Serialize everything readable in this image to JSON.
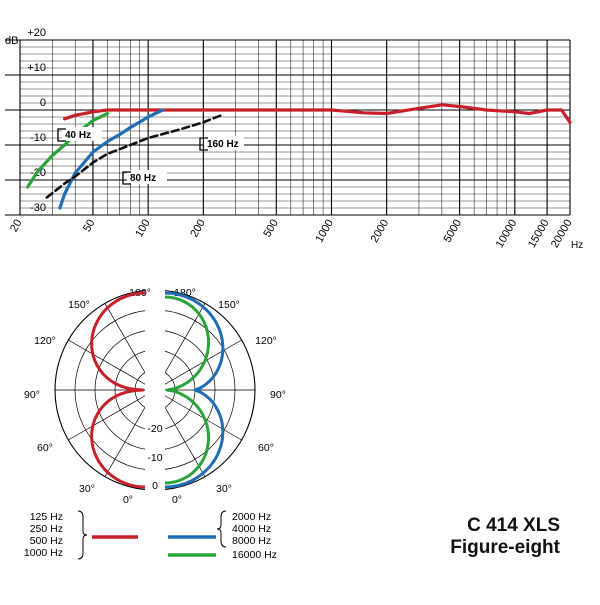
{
  "title": "C 414 XLS",
  "subtitle": "Figure-eight",
  "chart_data": [
    {
      "type": "line",
      "name": "frequency-response",
      "xscale": "log",
      "xlim": [
        20,
        20000
      ],
      "ylim": [
        -30,
        20
      ],
      "grid": true,
      "ylabel": "dB",
      "xlabel": "Hz",
      "yticks": [
        {
          "value": 20,
          "label": "+20"
        },
        {
          "value": 10,
          "label": "+10"
        },
        {
          "value": 0,
          "label": "0"
        },
        {
          "value": -10,
          "label": "-10"
        },
        {
          "value": -20,
          "label": "-20"
        },
        {
          "value": -30,
          "label": "-30"
        }
      ],
      "xticks": [
        {
          "value": 20,
          "label": "20"
        },
        {
          "value": 50,
          "label": "50"
        },
        {
          "value": 100,
          "label": "100"
        },
        {
          "value": 200,
          "label": "200"
        },
        {
          "value": 500,
          "label": "500"
        },
        {
          "value": 1000,
          "label": "1000"
        },
        {
          "value": 2000,
          "label": "2000"
        },
        {
          "value": 5000,
          "label": "5000"
        },
        {
          "value": 10000,
          "label": "10000"
        },
        {
          "value": 15000,
          "label": "15000"
        },
        {
          "value": 20000,
          "label": "20000"
        }
      ],
      "series": [
        {
          "color": "#c8202a",
          "style": "solid",
          "x": [
            35,
            40,
            50,
            60,
            100,
            200,
            500,
            1000,
            1500,
            2000,
            3000,
            4000,
            5000,
            7000,
            10000,
            12000,
            15000,
            18000,
            20000
          ],
          "y": [
            -2.5,
            -1.5,
            -0.5,
            0,
            0,
            0,
            0,
            0,
            -0.8,
            -1,
            0.5,
            1.5,
            1,
            0,
            -0.5,
            -1,
            0,
            0,
            -3.5
          ]
        },
        {
          "color": "#2aa43a",
          "style": "solid",
          "x": [
            22,
            25,
            30,
            35,
            40,
            50,
            60
          ],
          "y": [
            -22,
            -17.5,
            -13,
            -10,
            -7,
            -3,
            -1
          ]
        },
        {
          "color": "#1f6db5",
          "style": "solid",
          "x": [
            33,
            35,
            40,
            50,
            60,
            70,
            80,
            100,
            120
          ],
          "y": [
            -28,
            -24,
            -18,
            -12,
            -9,
            -7,
            -5,
            -2,
            0
          ]
        },
        {
          "color": "#111111",
          "style": "dashed",
          "x": [
            28,
            35,
            40,
            50,
            60,
            80,
            100,
            150,
            200,
            250
          ],
          "y": [
            -25,
            -21,
            -19,
            -15,
            -12.5,
            -10,
            -8,
            -5.5,
            -3.5,
            -1.5
          ]
        }
      ],
      "annotations": [
        "40 Hz",
        "80 Hz",
        "160 Hz"
      ]
    },
    {
      "type": "polar",
      "name": "polar-pattern",
      "angles": [
        {
          "value": 180,
          "label": "180°"
        },
        {
          "value": 150,
          "label": "150°"
        },
        {
          "value": 120,
          "label": "120°"
        },
        {
          "value": 90,
          "label": "90°"
        },
        {
          "value": 60,
          "label": "60°"
        },
        {
          "value": 30,
          "label": "30°"
        },
        {
          "value": 0,
          "label": "0°"
        }
      ],
      "rings_db": [
        {
          "value": -20,
          "label": "-20"
        },
        {
          "value": -10,
          "label": "-10"
        },
        {
          "value": 0,
          "label": "0"
        }
      ],
      "series": [
        {
          "side": "left",
          "color": "#c8202a",
          "pattern": "figure-eight"
        },
        {
          "side": "right",
          "color": "#2aa43a",
          "pattern": "narrow figure-eight"
        },
        {
          "side": "right",
          "color": "#1f6db5",
          "pattern": "figure-eight with side lobes"
        }
      ]
    }
  ],
  "legend": [
    {
      "color": "#c8202a",
      "labels": [
        "125 Hz",
        "250 Hz",
        "500 Hz",
        "1000 Hz"
      ]
    },
    {
      "color": "#1f6db5",
      "labels": [
        "2000 Hz",
        "4000 Hz",
        "8000 Hz"
      ]
    },
    {
      "color": "#2aa43a",
      "labels": [
        "16000 Hz"
      ]
    }
  ]
}
